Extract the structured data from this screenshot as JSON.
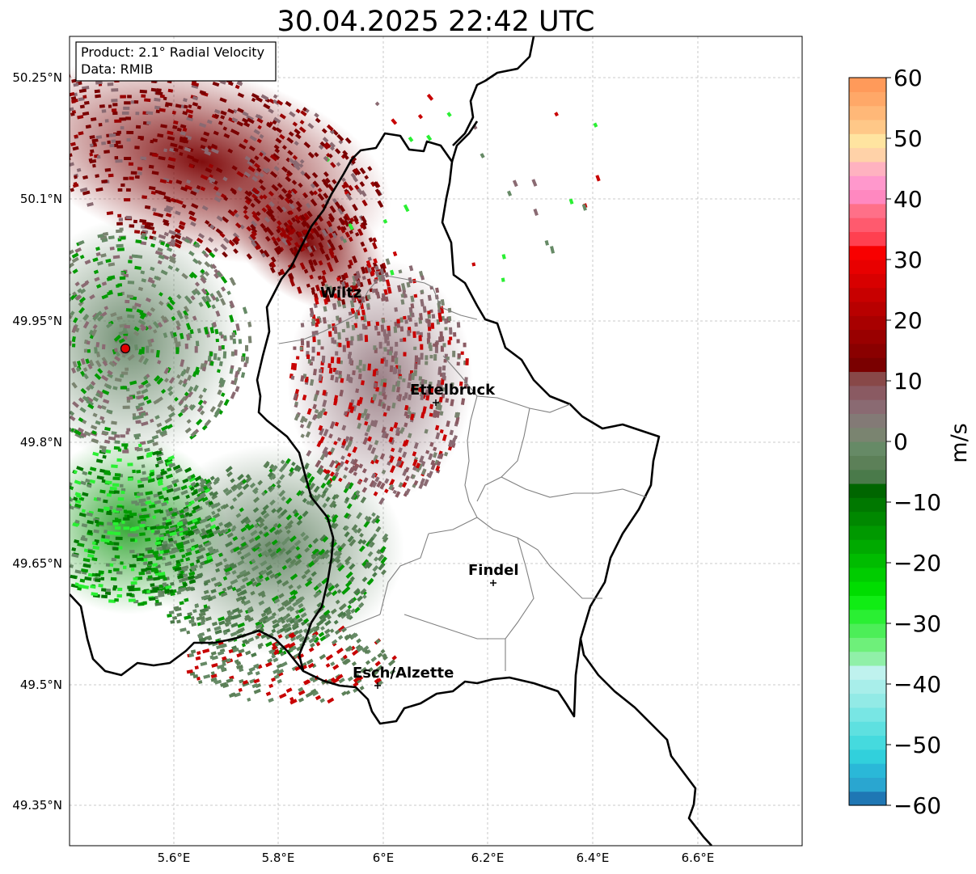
{
  "title": "30.04.2025 22:42 UTC",
  "info_box": {
    "line1": "Product: 2.1° Radial Velocity",
    "line2": "Data: RMIB"
  },
  "lat_ticks": [
    "50.25°N",
    "50.1°N",
    "49.95°N",
    "49.8°N",
    "49.65°N",
    "49.5°N",
    "49.35°N"
  ],
  "lon_ticks": [
    "5.6°E",
    "5.8°E",
    "6°E",
    "6.2°E",
    "6.4°E",
    "6.6°E"
  ],
  "cities": [
    {
      "name": "Wiltz"
    },
    {
      "name": "Ettelbruck"
    },
    {
      "name": "Findel"
    },
    {
      "name": "Esch/Alzette"
    }
  ],
  "colorbar": {
    "label": "m/s",
    "min": -60,
    "max": 60,
    "ticks": [
      "60",
      "50",
      "40",
      "30",
      "20",
      "10",
      "0",
      "−10",
      "−20",
      "−30",
      "−40",
      "−50",
      "−60"
    ],
    "colors": [
      "#1f77b4",
      "#2aa6d0",
      "#2ab8d8",
      "#31d0dc",
      "#45dade",
      "#5ee0e0",
      "#78e6e4",
      "#92eae6",
      "#a8eeea",
      "#bff2ee",
      "#90f0a8",
      "#6ef07a",
      "#4cee58",
      "#2aef33",
      "#10ed14",
      "#00dd00",
      "#00cc00",
      "#00bc00",
      "#00aa00",
      "#009900",
      "#008800",
      "#007800",
      "#006600",
      "#4a7a4a",
      "#5c8058",
      "#668a66",
      "#7a8470",
      "#837a76",
      "#8a6a72",
      "#8a5a62",
      "#884848",
      "#7a0000",
      "#8a0000",
      "#990000",
      "#a80000",
      "#b80000",
      "#c80000",
      "#d80000",
      "#e80000",
      "#f80000",
      "#ff4050",
      "#ff5a6e",
      "#ff7088",
      "#ff88c0",
      "#ff98cc",
      "#ffb2c0",
      "#ffd2a8",
      "#ffe4a0",
      "#ffc888",
      "#ffb878",
      "#ffa868",
      "#ff9a5a"
    ]
  },
  "radar_site": {
    "color": "#e00000"
  },
  "velocity_colors": {
    "dark_red": "#7a0000",
    "mauve": "#8a6a72",
    "grey_green": "#668a66",
    "green": "#009a00",
    "bright_green": "#2aef33"
  }
}
